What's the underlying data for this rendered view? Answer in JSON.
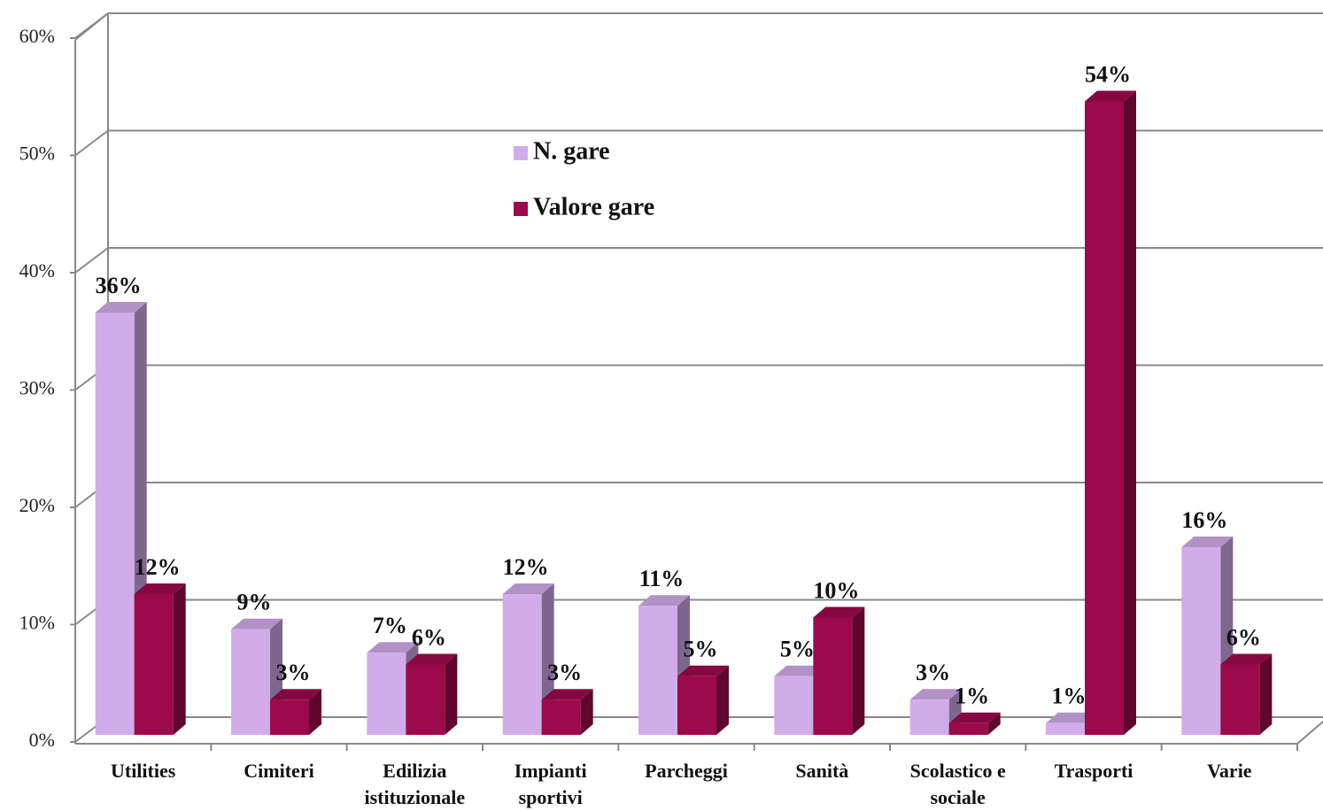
{
  "chart_data": {
    "type": "bar",
    "categories": [
      "Utilities",
      "Cimiteri",
      "Edilizia istituzionale",
      "Impianti sportivi",
      "Parcheggi",
      "Sanità",
      "Scolastico e sociale",
      "Trasporti",
      "Varie"
    ],
    "series": [
      {
        "name": "N. gare",
        "color": "#d1ace9",
        "values": [
          36,
          9,
          7,
          12,
          11,
          5,
          3,
          1,
          16
        ],
        "value_labels": [
          "36%",
          "9%",
          "7%",
          "12%",
          "11%",
          "5%",
          "3%",
          "1%",
          "16%"
        ]
      },
      {
        "name": "Valore gare",
        "color": "#9c0a4b",
        "values": [
          12,
          3,
          6,
          3,
          5,
          10,
          1,
          54,
          6
        ],
        "value_labels": [
          "12%",
          "3%",
          "6%",
          "3%",
          "5%",
          "10%",
          "1%",
          "54%",
          "6%"
        ]
      }
    ],
    "ylim": [
      0,
      60
    ],
    "yticks": [
      {
        "value": 0,
        "label": "0%"
      },
      {
        "value": 10,
        "label": "10%"
      },
      {
        "value": 20,
        "label": "20%"
      },
      {
        "value": 30,
        "label": "30%"
      },
      {
        "value": 40,
        "label": "40%"
      },
      {
        "value": 50,
        "label": "50%"
      },
      {
        "value": 60,
        "label": "60%"
      }
    ],
    "grid": true
  }
}
